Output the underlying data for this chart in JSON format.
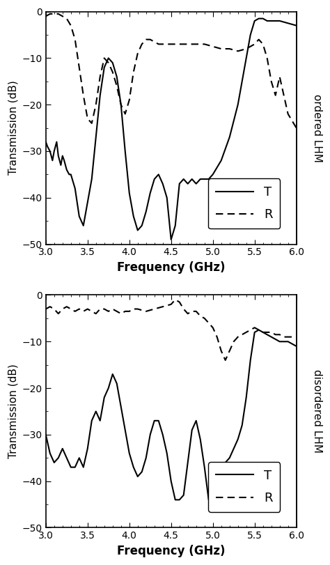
{
  "fig_width": 4.74,
  "fig_height": 8.11,
  "xlim": [
    3.0,
    6.0
  ],
  "ylim": [
    -50,
    0
  ],
  "xticks": [
    3.0,
    3.5,
    4.0,
    4.5,
    5.0,
    5.5,
    6.0
  ],
  "yticks": [
    0,
    -10,
    -20,
    -30,
    -40,
    -50
  ],
  "xlabel": "Frequency (GHz)",
  "ylabel": "Transmission (dB)",
  "right_label_top": "ordered LHM",
  "right_label_bottom": "disordered LHM",
  "top_T_x": [
    3.0,
    3.02,
    3.05,
    3.08,
    3.1,
    3.13,
    3.15,
    3.18,
    3.2,
    3.22,
    3.25,
    3.28,
    3.3,
    3.35,
    3.4,
    3.45,
    3.5,
    3.55,
    3.6,
    3.65,
    3.7,
    3.75,
    3.8,
    3.85,
    3.9,
    3.95,
    4.0,
    4.05,
    4.1,
    4.15,
    4.2,
    4.25,
    4.3,
    4.35,
    4.4,
    4.45,
    4.5,
    4.55,
    4.6,
    4.65,
    4.7,
    4.75,
    4.8,
    4.85,
    4.9,
    4.95,
    5.0,
    5.1,
    5.2,
    5.3,
    5.4,
    5.45,
    5.5,
    5.55,
    5.6,
    5.65,
    5.7,
    5.8,
    5.9,
    6.0
  ],
  "top_T_y": [
    -28,
    -29,
    -30,
    -32,
    -30,
    -28,
    -31,
    -33,
    -31,
    -32,
    -34,
    -35,
    -35,
    -38,
    -44,
    -46,
    -41,
    -36,
    -27,
    -18,
    -12,
    -10,
    -11,
    -14,
    -20,
    -30,
    -39,
    -44,
    -47,
    -46,
    -43,
    -39,
    -36,
    -35,
    -37,
    -40,
    -49,
    -46,
    -37,
    -36,
    -37,
    -36,
    -37,
    -36,
    -36,
    -36,
    -35,
    -32,
    -27,
    -20,
    -10,
    -5,
    -2,
    -1.5,
    -1.5,
    -2,
    -2,
    -2,
    -2.5,
    -3
  ],
  "top_R_x": [
    3.0,
    3.05,
    3.1,
    3.15,
    3.2,
    3.25,
    3.3,
    3.35,
    3.4,
    3.45,
    3.5,
    3.55,
    3.6,
    3.65,
    3.7,
    3.75,
    3.8,
    3.85,
    3.9,
    3.95,
    4.0,
    4.05,
    4.1,
    4.15,
    4.2,
    4.25,
    4.3,
    4.35,
    4.4,
    4.45,
    4.5,
    4.55,
    4.6,
    4.65,
    4.7,
    4.8,
    4.9,
    5.0,
    5.1,
    5.2,
    5.3,
    5.4,
    5.5,
    5.55,
    5.6,
    5.65,
    5.7,
    5.75,
    5.8,
    5.85,
    5.9,
    6.0
  ],
  "top_R_y": [
    -1,
    -0.5,
    -0.5,
    -0.5,
    -1,
    -1.5,
    -3,
    -6,
    -12,
    -18,
    -23,
    -24,
    -20,
    -14,
    -10,
    -11,
    -13,
    -16,
    -20,
    -22,
    -19,
    -13,
    -9,
    -7,
    -6,
    -6,
    -6.5,
    -7,
    -7,
    -7,
    -7,
    -7,
    -7,
    -7,
    -7,
    -7,
    -7,
    -7.5,
    -8,
    -8,
    -8.5,
    -8,
    -7,
    -6,
    -7,
    -10,
    -15,
    -18,
    -14,
    -18,
    -22,
    -25
  ],
  "bot_T_x": [
    3.0,
    3.05,
    3.1,
    3.15,
    3.2,
    3.25,
    3.3,
    3.35,
    3.4,
    3.45,
    3.5,
    3.55,
    3.6,
    3.65,
    3.7,
    3.75,
    3.8,
    3.85,
    3.9,
    3.95,
    4.0,
    4.05,
    4.1,
    4.15,
    4.2,
    4.25,
    4.3,
    4.35,
    4.4,
    4.45,
    4.5,
    4.55,
    4.6,
    4.65,
    4.7,
    4.75,
    4.8,
    4.85,
    4.9,
    4.95,
    5.0,
    5.05,
    5.1,
    5.15,
    5.2,
    5.25,
    5.3,
    5.35,
    5.4,
    5.45,
    5.5,
    5.55,
    5.6,
    5.65,
    5.7,
    5.75,
    5.8,
    5.85,
    5.9,
    5.95,
    6.0
  ],
  "bot_T_y": [
    -30,
    -34,
    -36,
    -35,
    -33,
    -35,
    -37,
    -37,
    -35,
    -37,
    -33,
    -27,
    -25,
    -27,
    -22,
    -20,
    -17,
    -19,
    -24,
    -29,
    -34,
    -37,
    -39,
    -38,
    -35,
    -30,
    -27,
    -27,
    -30,
    -34,
    -40,
    -44,
    -44,
    -43,
    -36,
    -29,
    -27,
    -31,
    -37,
    -44,
    -44,
    -42,
    -39,
    -36,
    -35,
    -33,
    -31,
    -28,
    -22,
    -14,
    -8,
    -7.5,
    -8,
    -8.5,
    -9,
    -9.5,
    -10,
    -10,
    -10,
    -10.5,
    -11
  ],
  "bot_R_x": [
    3.0,
    3.05,
    3.1,
    3.15,
    3.2,
    3.25,
    3.3,
    3.35,
    3.4,
    3.45,
    3.5,
    3.55,
    3.6,
    3.65,
    3.7,
    3.75,
    3.8,
    3.85,
    3.9,
    3.95,
    4.0,
    4.05,
    4.1,
    4.2,
    4.3,
    4.4,
    4.5,
    4.55,
    4.6,
    4.65,
    4.7,
    4.75,
    4.8,
    4.85,
    4.9,
    4.95,
    5.0,
    5.05,
    5.1,
    5.15,
    5.2,
    5.25,
    5.3,
    5.35,
    5.4,
    5.45,
    5.5,
    5.55,
    5.6,
    5.65,
    5.7,
    5.75,
    5.8,
    5.85,
    5.9,
    5.95,
    6.0
  ],
  "bot_R_y": [
    -3,
    -2.5,
    -3,
    -4,
    -3,
    -2.5,
    -3,
    -3.5,
    -3,
    -3.5,
    -3,
    -3.5,
    -4,
    -3,
    -3,
    -3.5,
    -3,
    -3.5,
    -4,
    -3.5,
    -3.5,
    -3,
    -3,
    -3.5,
    -3,
    -2.5,
    -2,
    -1,
    -1.5,
    -3,
    -4,
    -3.5,
    -3.5,
    -4.5,
    -5,
    -6,
    -7,
    -9,
    -12,
    -14,
    -12,
    -10,
    -9,
    -8.5,
    -8,
    -7.5,
    -7,
    -7.5,
    -8,
    -8,
    -8,
    -8.5,
    -8.5,
    -9,
    -9,
    -9,
    -9
  ]
}
